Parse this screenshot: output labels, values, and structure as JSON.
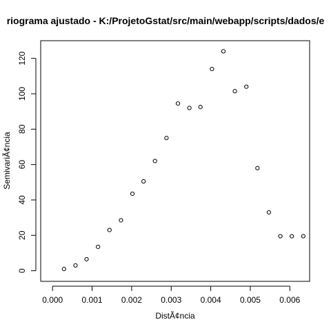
{
  "chart_data": {
    "type": "scatter",
    "title": "riograma ajustado - K:/ProjetoGstat/src/main/webapp/scripts/dados/e",
    "xlabel": "DistÃ¢ncia",
    "ylabel": "SemivariÃ¢ncia",
    "xlim": [
      -0.0003,
      0.0065
    ],
    "ylim": [
      -6,
      130
    ],
    "xticks": [
      0.0,
      0.001,
      0.002,
      0.003,
      0.004,
      0.005,
      0.006
    ],
    "xtick_labels": [
      "0.000",
      "0.001",
      "0.002",
      "0.003",
      "0.004",
      "0.005",
      "0.006"
    ],
    "yticks": [
      0,
      20,
      40,
      60,
      80,
      100,
      120
    ],
    "ytick_labels": [
      "0",
      "20",
      "40",
      "60",
      "80",
      "100",
      "120"
    ],
    "grid": false,
    "marker": "open-circle",
    "points": [
      {
        "x": 0.00029,
        "y": 1
      },
      {
        "x": 0.00058,
        "y": 3
      },
      {
        "x": 0.00086,
        "y": 6.5
      },
      {
        "x": 0.00115,
        "y": 13.5
      },
      {
        "x": 0.00144,
        "y": 23
      },
      {
        "x": 0.00173,
        "y": 28.5
      },
      {
        "x": 0.00202,
        "y": 43.5
      },
      {
        "x": 0.0023,
        "y": 50.5
      },
      {
        "x": 0.00259,
        "y": 62
      },
      {
        "x": 0.00288,
        "y": 75
      },
      {
        "x": 0.00317,
        "y": 94.5
      },
      {
        "x": 0.00346,
        "y": 92
      },
      {
        "x": 0.00374,
        "y": 92.5
      },
      {
        "x": 0.00403,
        "y": 114
      },
      {
        "x": 0.00432,
        "y": 124
      },
      {
        "x": 0.00461,
        "y": 101.5
      },
      {
        "x": 0.0049,
        "y": 104
      },
      {
        "x": 0.00518,
        "y": 58
      },
      {
        "x": 0.00547,
        "y": 33
      },
      {
        "x": 0.00576,
        "y": 19.5
      },
      {
        "x": 0.00605,
        "y": 19.5
      },
      {
        "x": 0.00634,
        "y": 19.5
      }
    ]
  }
}
